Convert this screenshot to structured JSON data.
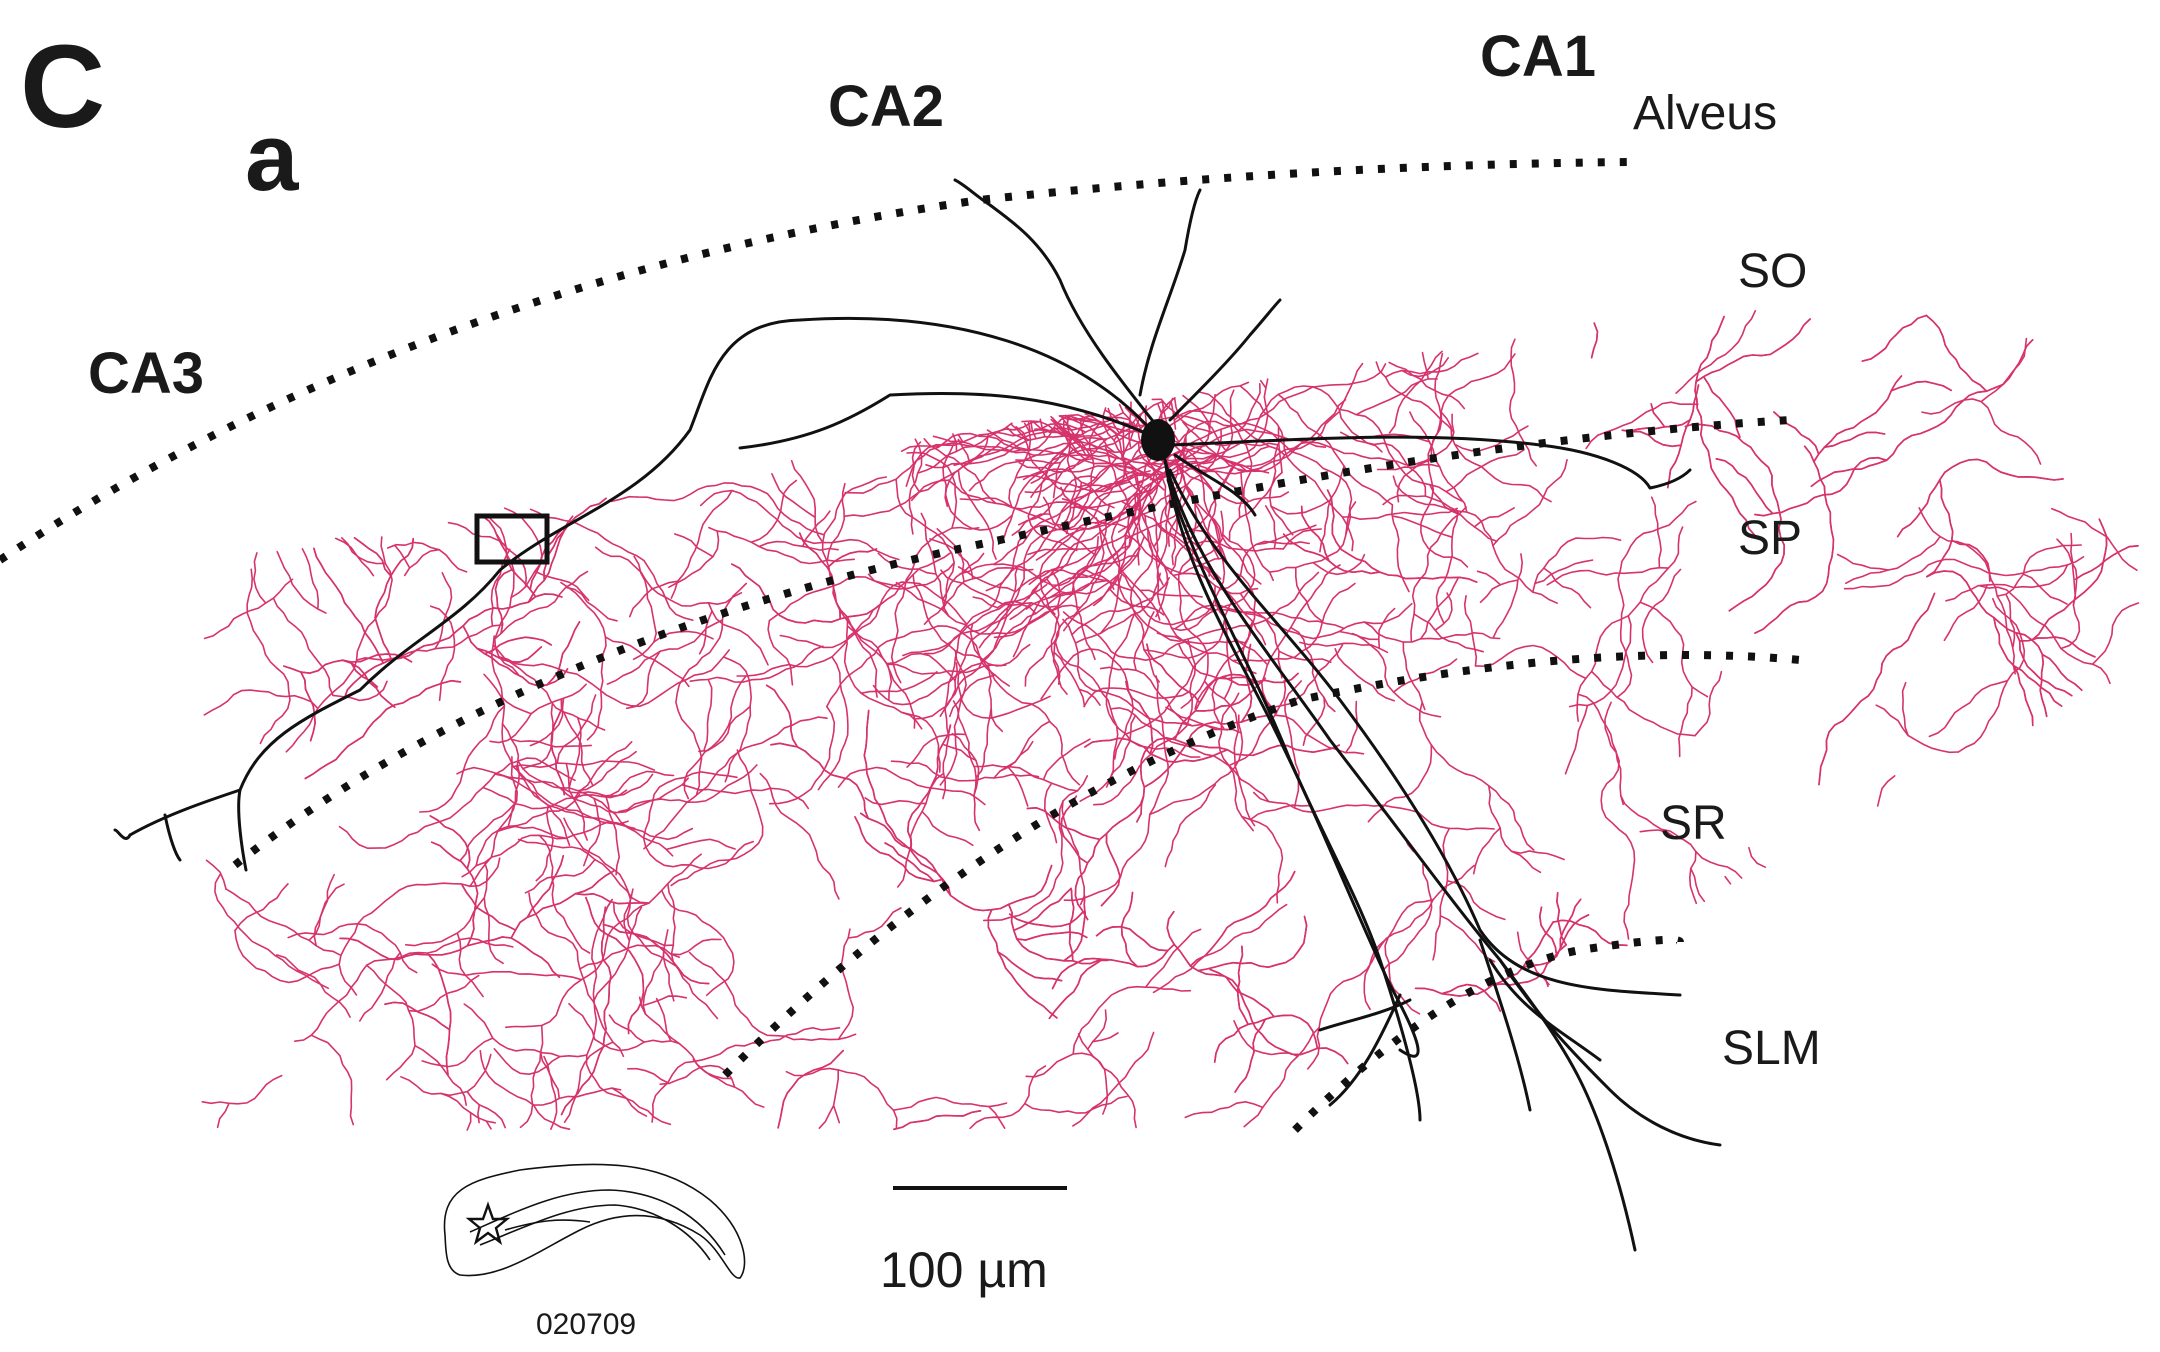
{
  "figure": {
    "panel_letter": "C",
    "sub_panel": "a",
    "regions": {
      "ca3": "CA3",
      "ca2": "CA2",
      "ca1": "CA1"
    },
    "layers": {
      "alveus": "Alveus",
      "so": "SO",
      "sp": "SP",
      "sr": "SR",
      "slm": "SLM"
    },
    "scale_bar": {
      "label": "100 µm",
      "length_um": 100
    },
    "slice_id": "020709",
    "colors": {
      "dendrite": "#111111",
      "axon": "#d6336c",
      "boundary": "#111111",
      "text": "#1a1a1a"
    },
    "icons": [
      "hippocampus-slice-icon",
      "star-icon",
      "inset-box-icon"
    ]
  }
}
